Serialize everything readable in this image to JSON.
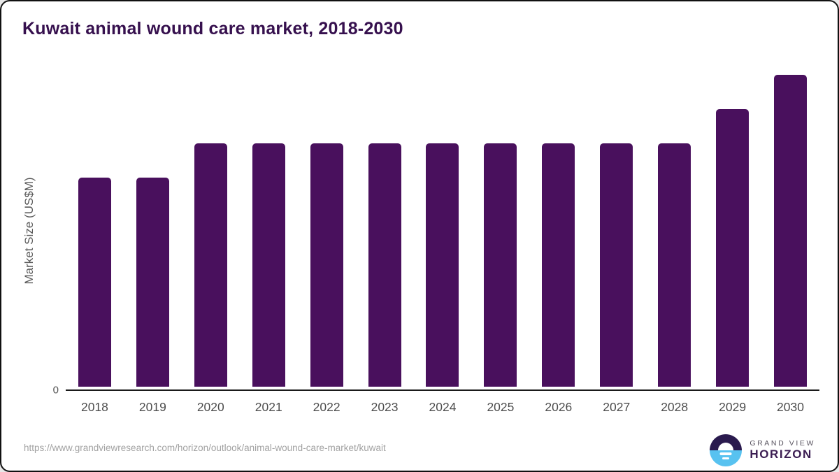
{
  "title": "Kuwait animal wound care market, 2018-2030",
  "chart_data": {
    "type": "bar",
    "title": "Kuwait animal wound care market, 2018-2030",
    "categories": [
      "2018",
      "2019",
      "2020",
      "2021",
      "2022",
      "2023",
      "2024",
      "2025",
      "2026",
      "2027",
      "2028",
      "2029",
      "2030"
    ],
    "values": [
      6.7,
      6.7,
      7.8,
      7.8,
      7.8,
      7.8,
      7.8,
      7.8,
      7.8,
      7.8,
      7.8,
      8.9,
      10.0
    ],
    "values_note": "Relative estimates read from bar heights; chart shows no numeric data labels, y-axis shows only 0",
    "xlabel": "",
    "ylabel": "Market Size (US$M)",
    "ylim": [
      0,
      10.5
    ],
    "y_tick_labels": [
      "0"
    ],
    "grid": false,
    "legend": false,
    "bar_color": "#49105d"
  },
  "axes": {
    "y_zero_label": "0",
    "y_axis_title": "Market Size (US$M)"
  },
  "footer": {
    "source_url": "https://www.grandviewresearch.com/horizon/outlook/animal-wound-care-market/kuwait",
    "logo": {
      "brand_top": "GRAND VIEW",
      "brand_bottom": "HORIZON",
      "icon": "horizon-sun-icon"
    }
  },
  "colors": {
    "title_text": "#36104e",
    "bar_fill": "#49105d",
    "axis_line": "#1a1a1a",
    "tick_text": "#4d4d4d",
    "axis_label_text": "#595959",
    "url_text": "#a2a2a2",
    "logo_dark": "#2a1a4e",
    "logo_blue": "#58c2f0"
  }
}
